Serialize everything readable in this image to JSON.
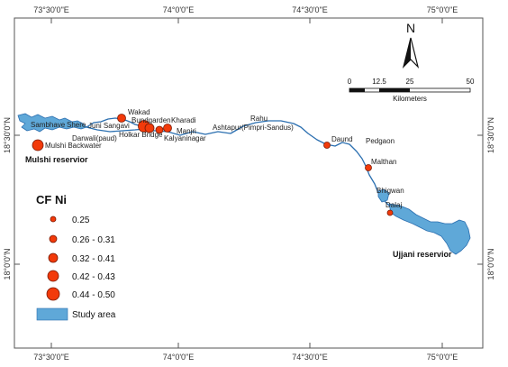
{
  "frame": {
    "top_ticks": [
      "73°30'0\"E",
      "74°0'0\"E",
      "74°30'0\"E",
      "75°0'0\"E"
    ],
    "bottom_ticks": [
      "73°30'0\"E",
      "74°0'0\"E",
      "74°30'0\"E",
      "75°0'0\"E"
    ],
    "left_ticks": [
      "18°30'0\"N",
      "18°0'0\"N"
    ],
    "right_ticks": [
      "18°30'0\"N",
      "18°0'0\"N"
    ]
  },
  "north_arrow": {
    "label": "N"
  },
  "scale_bar": {
    "ticks": [
      "0",
      "12.5",
      "25",
      "50"
    ],
    "unit": "Kilometers"
  },
  "places": {
    "sambhave_shere": "Sambhave",
    "shere": "Shere",
    "juni_sangavi": "Juni Sangavi",
    "darwali": "Darwali(paud)",
    "mulshi_backwater": "Mulshi Backwater",
    "wakad": "Wakad",
    "bundgarden": "Bundgarden",
    "kharadi": "Kharadi",
    "holkar_bridge": "Holkar Bridge",
    "manjri": "Manjri",
    "kalyaninagar": "Kalyaninagar",
    "rahu": "Rahu",
    "ashtapur": "Ashtapur(Pimpri-Sandus)",
    "daund": "Daund",
    "pedgaon": "Pedgaon",
    "malthan": "Malthan",
    "bhigwan": "Bhigwan",
    "dalaj": "Dalaj"
  },
  "reservoirs": {
    "mulshi": "Mulshi reservior",
    "ujjani": "Ujjani reservior"
  },
  "legend": {
    "title": "CF Ni",
    "classes": [
      "0.25",
      "0.26 - 0.31",
      "0.32 - 0.41",
      "0.42 - 0.43",
      "0.44 - 0.50"
    ],
    "study_area": "Study area"
  },
  "colors": {
    "water": "#5fa8d8",
    "water_stroke": "#2b6fb0",
    "point_fill": "#f23a0a",
    "point_stroke": "#7a1a05"
  }
}
